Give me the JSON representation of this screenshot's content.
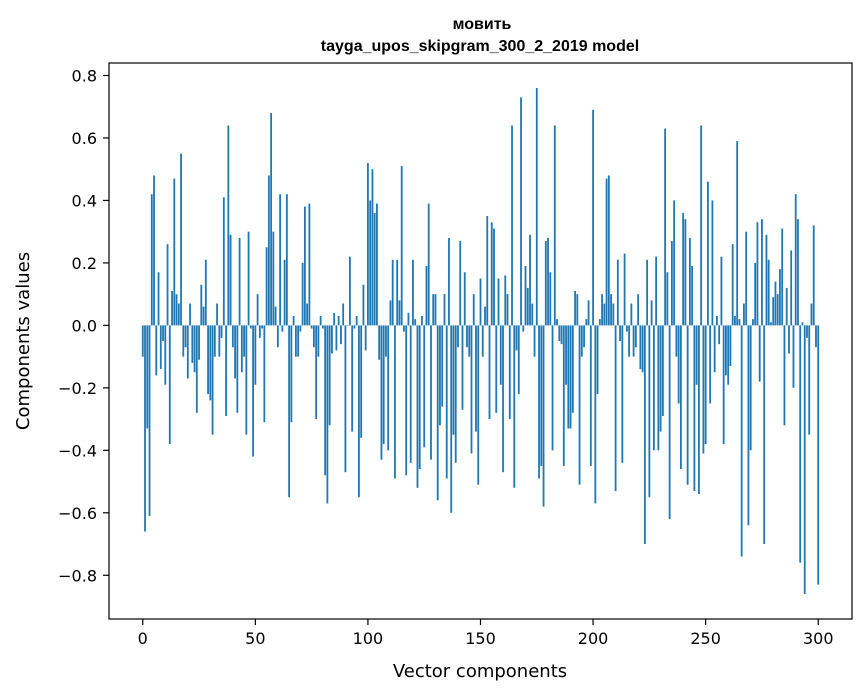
{
  "chart_data": {
    "type": "bar",
    "title": "мовить",
    "subtitle": "tayga_upos_skipgram_300_2_2019 model",
    "xlabel": "Vector components",
    "ylabel": "Components values",
    "xlim": [
      -15,
      315
    ],
    "ylim": [
      -0.94,
      0.84
    ],
    "xticks": [
      0,
      50,
      100,
      150,
      200,
      250,
      300
    ],
    "yticks": [
      -0.8,
      -0.6,
      -0.4,
      -0.2,
      0.0,
      0.2,
      0.4,
      0.6,
      0.8
    ],
    "ytick_labels": [
      "−0.8",
      "−0.6",
      "−0.4",
      "−0.2",
      "0.0",
      "0.2",
      "0.4",
      "0.6",
      "0.8"
    ],
    "xtick_labels": [
      "0",
      "50",
      "100",
      "150",
      "200",
      "250",
      "300"
    ],
    "grid": false,
    "bar_color": "#1f77b4",
    "series": [
      {
        "values": [
          -0.1,
          -0.66,
          -0.33,
          -0.61,
          0.42,
          0.48,
          -0.16,
          0.17,
          -0.14,
          -0.05,
          -0.19,
          0.26,
          -0.38,
          0.11,
          0.47,
          0.1,
          0.07,
          0.55,
          -0.1,
          -0.07,
          -0.17,
          0.07,
          -0.12,
          -0.15,
          -0.28,
          -0.11,
          0.13,
          0.06,
          0.21,
          -0.22,
          -0.24,
          -0.35,
          -0.1,
          0.07,
          -0.1,
          -0.04,
          0.41,
          -0.29,
          0.64,
          0.29,
          -0.07,
          -0.17,
          -0.28,
          0.28,
          -0.15,
          -0.1,
          -0.35,
          0.3,
          -0.01,
          -0.42,
          -0.19,
          0.1,
          -0.04,
          -0.01,
          -0.31,
          0.25,
          0.48,
          0.68,
          0.3,
          0.06,
          -0.07,
          0.42,
          -0.02,
          0.21,
          0.42,
          -0.55,
          -0.31,
          0.03,
          -0.1,
          -0.1,
          -0.02,
          0.2,
          0.38,
          0.07,
          0.39,
          -0.01,
          -0.07,
          -0.3,
          -0.1,
          0.03,
          -0.01,
          -0.48,
          -0.57,
          -0.32,
          -0.09,
          0.04,
          -0.08,
          0.03,
          -0.06,
          0.07,
          -0.47,
          0.0,
          0.22,
          -0.34,
          -0.01,
          0.03,
          -0.55,
          -0.36,
          0.13,
          -0.08,
          0.52,
          0.4,
          0.5,
          0.36,
          0.39,
          -0.11,
          -0.43,
          -0.38,
          -0.1,
          -0.4,
          0.08,
          0.21,
          -0.49,
          0.21,
          0.08,
          0.51,
          -0.02,
          -0.48,
          0.04,
          -0.44,
          0.21,
          0.02,
          -0.52,
          -0.46,
          0.03,
          -0.39,
          0.19,
          0.39,
          -0.43,
          0.1,
          0.1,
          -0.56,
          -0.32,
          -0.26,
          0.1,
          -0.49,
          0.28,
          -0.6,
          -0.35,
          -0.44,
          -0.07,
          0.27,
          -0.27,
          0.17,
          -0.07,
          -0.1,
          -0.41,
          0.1,
          -0.34,
          -0.51,
          0.15,
          -0.1,
          0.06,
          0.35,
          -0.3,
          0.33,
          0.31,
          -0.28,
          0.15,
          -0.19,
          -0.47,
          0.16,
          0.1,
          -0.3,
          0.64,
          -0.52,
          -0.08,
          -0.22,
          0.73,
          -0.02,
          0.19,
          0.12,
          0.29,
          0.07,
          -0.1,
          0.76,
          -0.49,
          -0.45,
          -0.58,
          0.27,
          0.28,
          0.17,
          -0.4,
          0.64,
          0.02,
          -0.05,
          -0.06,
          -0.45,
          -0.19,
          -0.33,
          -0.33,
          -0.28,
          0.11,
          0.1,
          -0.51,
          -0.1,
          -0.07,
          0.02,
          0.08,
          -0.45,
          0.69,
          -0.57,
          -0.22,
          0.02,
          0.1,
          0.07,
          0.47,
          0.48,
          0.1,
          0.07,
          -0.53,
          0.21,
          -0.05,
          -0.44,
          0.23,
          -0.02,
          -0.1,
          0.07,
          -0.1,
          -0.07,
          0.1,
          -0.14,
          -0.15,
          -0.7,
          0.21,
          -0.55,
          0.08,
          -0.4,
          0.22,
          -0.4,
          -0.34,
          -0.29,
          0.63,
          0.17,
          -0.62,
          0.27,
          0.4,
          -0.1,
          -0.25,
          -0.46,
          0.36,
          0.34,
          -0.51,
          0.28,
          0.19,
          -0.53,
          -0.19,
          -0.54,
          0.64,
          -0.41,
          -0.38,
          0.46,
          -0.25,
          0.4,
          -0.15,
          0.03,
          -0.06,
          0.22,
          -0.38,
          -0.16,
          -0.19,
          -0.13,
          0.26,
          0.03,
          0.59,
          0.02,
          -0.74,
          0.07,
          0.3,
          -0.64,
          -0.4,
          0.02,
          0.2,
          0.33,
          -0.18,
          0.34,
          -0.7,
          0.29,
          0.21,
          0.01,
          0.09,
          0.14,
          0.1,
          0.18,
          0.31,
          -0.32,
          0.12,
          -0.09,
          0.24,
          -0.2,
          0.42,
          0.34,
          -0.76,
          0.01,
          -0.86,
          -0.04,
          -0.35,
          0.07,
          0.32,
          -0.07,
          -0.83
        ]
      }
    ]
  }
}
